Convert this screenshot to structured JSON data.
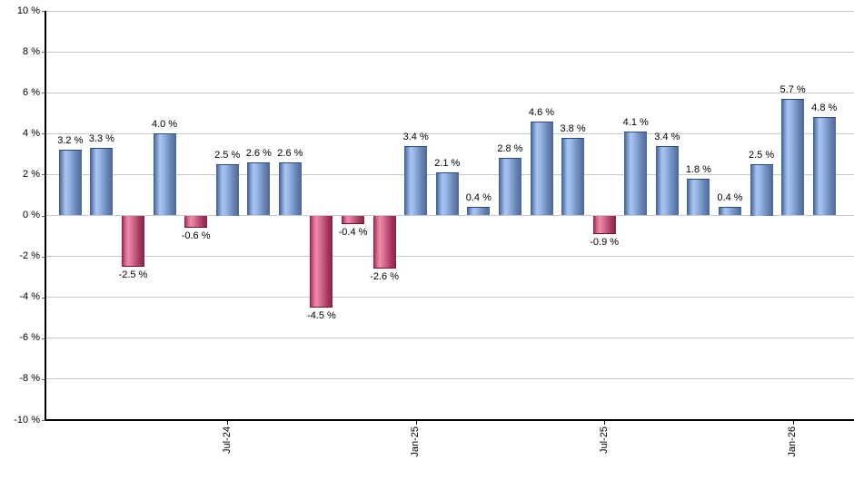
{
  "chart_data": {
    "type": "bar",
    "title": "",
    "xlabel": "",
    "ylabel": "",
    "ylim": [
      -10,
      10
    ],
    "y_tick_step": 2,
    "grid": "horizontal",
    "legend": "none",
    "values": [
      3.2,
      3.3,
      -2.5,
      4.0,
      -0.6,
      2.5,
      2.6,
      2.6,
      -4.5,
      -0.4,
      -2.6,
      3.4,
      2.1,
      0.4,
      2.8,
      4.6,
      3.8,
      -0.9,
      4.1,
      3.4,
      1.8,
      0.4,
      2.5,
      5.7,
      4.8
    ],
    "value_labels": [
      "3.2 %",
      "3.3 %",
      "-2.5 %",
      "4.0 %",
      "-0.6 %",
      "2.5 %",
      "2.6 %",
      "2.6 %",
      "-4.5 %",
      "-0.4 %",
      "-2.6 %",
      "3.4 %",
      "2.1 %",
      "0.4 %",
      "2.8 %",
      "4.6 %",
      "3.8 %",
      "-0.9 %",
      "4.1 %",
      "3.4 %",
      "1.8 %",
      "0.4 %",
      "2.5 %",
      "5.7 %",
      "4.8 %"
    ],
    "y_tick_labels": [
      "10 %",
      "8 %",
      "6 %",
      "4 %",
      "2 %",
      "0 %",
      "-2 %",
      "-4 %",
      "-6 %",
      "-8 %",
      "-10 %"
    ],
    "x_ticks": [
      {
        "label": "Jul-24",
        "bar_index": 5
      },
      {
        "label": "Jan-25",
        "bar_index": 11
      },
      {
        "label": "Jul-25",
        "bar_index": 17
      },
      {
        "label": "Jan-26",
        "bar_index": 23
      }
    ],
    "colors": {
      "positive_bar_dark": "#3d5a8a",
      "positive_bar_light": "#a9c6f1",
      "negative_bar_dark": "#8e1b40",
      "negative_bar_light": "#ee8ca6",
      "gridline": "#c9c9c9",
      "axis": "#000000",
      "label_text": "#000000"
    }
  }
}
